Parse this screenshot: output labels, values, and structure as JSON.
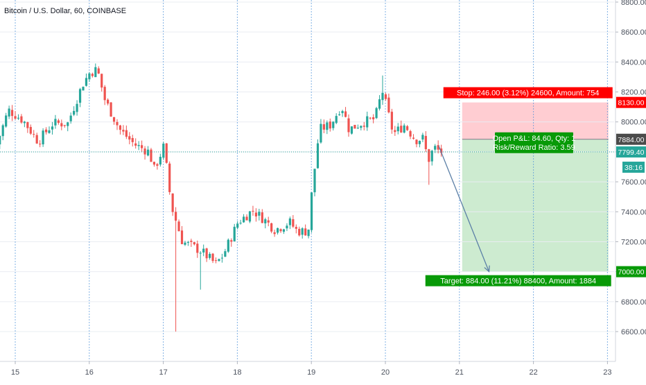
{
  "chart_data": {
    "type": "candlestick",
    "title": "Bitcoin / U.S. Dollar, 60, COINBASE",
    "colors": {
      "up": "#26a69a",
      "down": "#ef5350",
      "grid": "#e9ecf2",
      "day_line": "#4a90d9",
      "axis_text": "#4c525e",
      "price_line": "#26a69a",
      "stop_zone": "#ffcdd2",
      "target_zone": "#cdebd0",
      "stop_label": "#ff0000",
      "target_label": "#089a08",
      "pnl_label": "#089a08",
      "projection": "#5b7fa6",
      "entry_line": "#787b86",
      "entry_tag": "#4b4b4b"
    },
    "x_axis": {
      "ticks": [
        {
          "label": "15",
          "day": 15
        },
        {
          "label": "16",
          "day": 16
        },
        {
          "label": "17",
          "day": 17
        },
        {
          "label": "18",
          "day": 18
        },
        {
          "label": "19",
          "day": 19
        },
        {
          "label": "20",
          "day": 20
        },
        {
          "label": "21",
          "day": 21
        },
        {
          "label": "22",
          "day": 22
        },
        {
          "label": "23",
          "day": 23
        }
      ]
    },
    "y_axis": {
      "ylim": [
        6450,
        8800
      ],
      "ticks": [
        8800,
        8600,
        8400,
        8200,
        8000,
        7800,
        7600,
        7400,
        7200,
        7000,
        6800,
        6600
      ],
      "tick_labels": [
        "8800.00",
        "8600.00",
        "8400.00",
        "8200.00",
        "8000.00",
        "7800.00",
        "7600.00",
        "7400.00",
        "7200.00",
        "7000.00",
        "6800.00",
        "6600.00"
      ],
      "grid": true
    },
    "last_price": {
      "value": 7799.4,
      "label": "7799.40",
      "countdown": "38:16"
    },
    "position": {
      "entry": {
        "value": 7884.0,
        "label": "7884.00"
      },
      "stop": {
        "value": 8130.0,
        "label": "8130.00",
        "text": "Stop: 246.00 (3.12%) 24600, Amount: 754"
      },
      "target": {
        "value": 7000.0,
        "label": "7000.00",
        "text": "Target: 884.00 (11.21%) 88400, Amount: 1884"
      },
      "pnl_line1": "Open P&L: 84.60, Qty: 1",
      "pnl_line2": "Risk/Reward Ratio: 3.59",
      "start_day": 21.0,
      "end_day": 23.05
    },
    "projection": {
      "from": {
        "day": 20.72,
        "price": 7840
      },
      "to": {
        "day": 21.4,
        "price": 7000
      }
    },
    "anchors": [
      {
        "day": 14.75,
        "price": 7790
      },
      {
        "day": 14.95,
        "price": 8080
      },
      {
        "day": 15.15,
        "price": 8010
      },
      {
        "day": 15.35,
        "price": 7870
      },
      {
        "day": 15.55,
        "price": 7990
      },
      {
        "day": 15.75,
        "price": 7990
      },
      {
        "day": 15.95,
        "price": 8250
      },
      {
        "day": 16.05,
        "price": 8330
      },
      {
        "day": 16.15,
        "price": 8350
      },
      {
        "day": 16.25,
        "price": 8150
      },
      {
        "day": 16.45,
        "price": 7950
      },
      {
        "day": 16.65,
        "price": 7850
      },
      {
        "day": 16.85,
        "price": 7800
      },
      {
        "day": 16.92,
        "price": 7680
      },
      {
        "day": 17.05,
        "price": 7840
      },
      {
        "day": 17.15,
        "price": 7440
      },
      {
        "day": 17.3,
        "price": 7200
      },
      {
        "day": 17.55,
        "price": 7140
      },
      {
        "day": 17.75,
        "price": 7050
      },
      {
        "day": 17.85,
        "price": 7110
      },
      {
        "day": 18.05,
        "price": 7330
      },
      {
        "day": 18.25,
        "price": 7410
      },
      {
        "day": 18.4,
        "price": 7350
      },
      {
        "day": 18.55,
        "price": 7280
      },
      {
        "day": 18.75,
        "price": 7330
      },
      {
        "day": 18.85,
        "price": 7270
      },
      {
        "day": 19.0,
        "price": 7270
      },
      {
        "day": 19.05,
        "price": 7540
      },
      {
        "day": 19.15,
        "price": 7950
      },
      {
        "day": 19.3,
        "price": 7980
      },
      {
        "day": 19.45,
        "price": 8110
      },
      {
        "day": 19.55,
        "price": 7950
      },
      {
        "day": 19.75,
        "price": 8000
      },
      {
        "day": 19.9,
        "price": 8020
      },
      {
        "day": 20.0,
        "price": 8210
      },
      {
        "day": 20.15,
        "price": 7920
      },
      {
        "day": 20.3,
        "price": 7980
      },
      {
        "day": 20.45,
        "price": 7880
      },
      {
        "day": 20.55,
        "price": 7890
      },
      {
        "day": 20.62,
        "price": 7740
      },
      {
        "day": 20.7,
        "price": 7830
      },
      {
        "day": 20.78,
        "price": 7800
      }
    ],
    "spikes": [
      {
        "day": 17.17,
        "low": 6600
      },
      {
        "day": 17.5,
        "low": 6880
      },
      {
        "day": 20.58,
        "low": 7580
      },
      {
        "day": 19.95,
        "high": 8310
      },
      {
        "day": 16.08,
        "high": 8390
      }
    ],
    "candle_step_days": 0.0417
  }
}
